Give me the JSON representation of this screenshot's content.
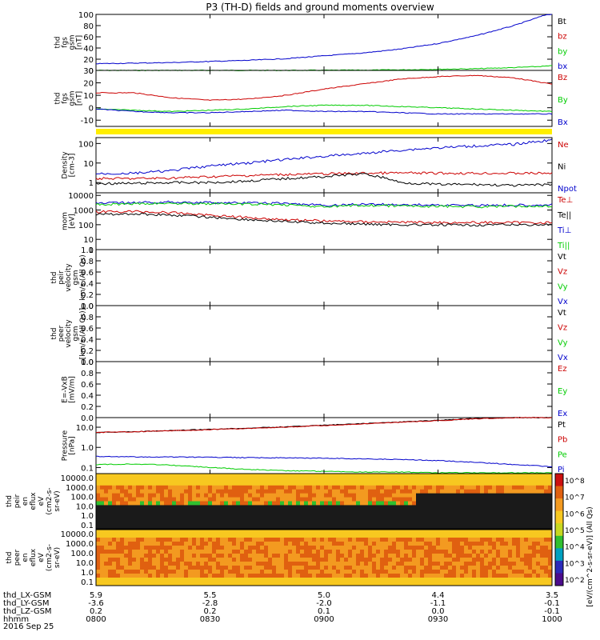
{
  "chart_data": {
    "type": "line",
    "title": "P3 (TH-D) fields and ground moments overview",
    "date_label": "2016 Sep 25",
    "x_axis": {
      "label_rows": [
        "thd_LX-GSM",
        "thd_LY-GSM",
        "thd_LZ-GSM",
        "hhmm"
      ],
      "hhmm": [
        "0800",
        "0830",
        "0900",
        "0930",
        "1000"
      ],
      "lx": [
        "5.9",
        "5.5",
        "5.0",
        "4.4",
        "3.5"
      ],
      "ly": [
        "-3.6",
        "-2.8",
        "-2.0",
        "-1.1",
        "-0.1"
      ],
      "lz": [
        "0.2",
        "0.2",
        "0.1",
        "0.0",
        "-0.1"
      ],
      "xlim": [
        0,
        120
      ]
    },
    "x": [
      0,
      10,
      20,
      30,
      40,
      50,
      60,
      70,
      80,
      90,
      100,
      110,
      120
    ],
    "colorbar": {
      "ticks": [
        "10^8",
        "10^7",
        "10^6",
        "10^5",
        "10^4",
        "10^3",
        "10^2"
      ],
      "label": "[eV/(cm^2-s-sr-eV)] (All Qs)"
    },
    "panels": [
      {
        "ylabel": [
          "thd",
          "fgs",
          "gsm",
          "[nT]"
        ],
        "scale": "linear",
        "ylim": [
          0,
          100
        ],
        "ticks": [
          "100",
          "80",
          "60",
          "40",
          "20",
          "0"
        ],
        "series": [
          {
            "name": "Bt",
            "color": "#000000",
            "y": []
          },
          {
            "name": "bz",
            "color": "#cc0000",
            "y": []
          },
          {
            "name": "by",
            "color": "#00cc00",
            "y": [
              0,
              0,
              0,
              0,
              0,
              0,
              0.2,
              0.5,
              1,
              2,
              3,
              5,
              8
            ]
          },
          {
            "name": "bx",
            "color": "#0000cc",
            "y": [
              12,
              13,
              14,
              16,
              18,
              21,
              26,
              31,
              38,
              48,
              62,
              80,
              103
            ]
          }
        ]
      },
      {
        "ylabel": [
          "thd",
          "fgs",
          "gsm",
          "[nT]"
        ],
        "scale": "linear",
        "ylim": [
          -15,
          30
        ],
        "ticks": [
          "30",
          "20",
          "10",
          "0",
          "-10"
        ],
        "series": [
          {
            "name": "Bz",
            "color": "#cc0000",
            "y": [
              12,
              12,
              8,
              6,
              7,
              10,
              15,
              19,
              23,
              25,
              26,
              24,
              19
            ]
          },
          {
            "name": "By",
            "color": "#00cc00",
            "y": [
              -1,
              -2,
              -3,
              -2,
              -1,
              1,
              2,
              2,
              1,
              0,
              -1,
              -2,
              -3
            ]
          },
          {
            "name": "Bx",
            "color": "#0000cc",
            "y": [
              -1,
              -3,
              -4,
              -4,
              -3,
              -2,
              -3,
              -3,
              -4,
              -5,
              -5,
              -5,
              -5
            ]
          }
        ]
      },
      {
        "ylabel": [
          "Density",
          "[cm-3]"
        ],
        "scale": "log",
        "ylim": [
          0.3,
          200
        ],
        "ticks": [
          "100",
          "10",
          "1"
        ],
        "series": [
          {
            "name": "Ne",
            "color": "#cc0000",
            "y": [
              1.6,
              1.6,
              1.7,
              2,
              2.3,
              2.6,
              2.8,
              3,
              3.1,
              3,
              3,
              3,
              3
            ]
          },
          {
            "name": "Ni",
            "color": "#000000",
            "y": [
              0.9,
              0.9,
              1,
              1,
              1.2,
              1.6,
              2,
              2.8,
              1,
              0.8,
              0.8,
              0.7,
              0.8
            ]
          },
          {
            "name": "Npot",
            "color": "#0000cc",
            "y": [
              2.8,
              3,
              4,
              7,
              10,
              15,
              22,
              30,
              45,
              60,
              75,
              90,
              150
            ]
          }
        ]
      },
      {
        "ylabel": [
          "mom",
          "[eV]"
        ],
        "scale": "log",
        "ylim": [
          2,
          15000
        ],
        "ticks": [
          "10000",
          "1000",
          "100",
          "10",
          "1"
        ],
        "series": [
          {
            "name": "Te⊥",
            "color": "#cc0000",
            "y": [
              750,
              800,
              650,
              450,
              300,
              220,
              180,
              160,
              150,
              140,
              140,
              140,
              140
            ]
          },
          {
            "name": "Te||",
            "color": "#000000",
            "y": [
              500,
              550,
              450,
              320,
              220,
              160,
              130,
              110,
              100,
              95,
              95,
              100,
              100
            ]
          },
          {
            "name": "Ti⊥",
            "color": "#0000cc",
            "y": [
              2800,
              3200,
              3500,
              3200,
              3000,
              2800,
              2000,
              2500,
              2300,
              2200,
              2100,
              2200,
              2300
            ]
          },
          {
            "name": "Ti||",
            "color": "#00cc00",
            "y": [
              2300,
              2600,
              2900,
              2700,
              2500,
              2300,
              1600,
              2100,
              1900,
              1800,
              1700,
              1800,
              1900
            ]
          }
        ]
      },
      {
        "ylabel": [
          "thd",
          "peir",
          "velocity",
          "gsm",
          "km/s (All Qs)"
        ],
        "scale": "linear",
        "ylim": [
          0,
          1
        ],
        "ticks": [
          "1.0",
          "0.8",
          "0.6",
          "0.4",
          "0.2",
          "0.0"
        ],
        "series": [
          {
            "name": "Vt",
            "color": "#000000",
            "y": []
          },
          {
            "name": "Vz",
            "color": "#cc0000",
            "y": []
          },
          {
            "name": "Vy",
            "color": "#00cc00",
            "y": []
          },
          {
            "name": "Vx",
            "color": "#0000cc",
            "y": []
          }
        ]
      },
      {
        "ylabel": [
          "thd",
          "peer",
          "velocity",
          "gsm",
          "[km/s (All Qs)]"
        ],
        "scale": "linear",
        "ylim": [
          0,
          1
        ],
        "ticks": [
          "1.0",
          "0.8",
          "0.6",
          "0.4",
          "0.2",
          "0.0"
        ],
        "series": [
          {
            "name": "Vt",
            "color": "#000000",
            "y": []
          },
          {
            "name": "Vz",
            "color": "#cc0000",
            "y": []
          },
          {
            "name": "Vy",
            "color": "#00cc00",
            "y": []
          },
          {
            "name": "Vx",
            "color": "#0000cc",
            "y": []
          }
        ]
      },
      {
        "ylabel": [
          "E=-VxB",
          "[mV/m]"
        ],
        "scale": "linear",
        "ylim": [
          0,
          1
        ],
        "ticks": [
          "1.0",
          "0.8",
          "0.6",
          "0.4",
          "0.2",
          "0.0"
        ],
        "series": [
          {
            "name": "Ez",
            "color": "#cc0000",
            "y": []
          },
          {
            "name": "Ey",
            "color": "#00cc00",
            "y": []
          },
          {
            "name": "Ex",
            "color": "#0000cc",
            "y": []
          }
        ]
      },
      {
        "ylabel": [
          "Pressure",
          "[nPa]"
        ],
        "scale": "log",
        "ylim": [
          0.05,
          30
        ],
        "ticks": [
          "10.0",
          "1.0",
          "0.1"
        ],
        "series": [
          {
            "name": "Pt",
            "color": "#000000",
            "y": [
              5.5,
              6,
              6.8,
              7.8,
              9,
              10.5,
              12.5,
              15,
              18,
              22,
              27,
              30,
              30
            ]
          },
          {
            "name": "Pb",
            "color": "#cc0000",
            "y": [
              5.5,
              6,
              6.7,
              7.6,
              8.7,
              10.2,
              12,
              14.5,
              17.5,
              21,
              26,
              30,
              30
            ]
          },
          {
            "name": "Pe",
            "color": "#00cc00",
            "y": [
              0.14,
              0.15,
              0.13,
              0.1,
              0.08,
              0.07,
              0.065,
              0.06,
              0.06,
              0.055,
              0.055,
              0.055,
              0.055
            ]
          },
          {
            "name": "Pi",
            "color": "#0000cc",
            "y": [
              0.35,
              0.34,
              0.33,
              0.32,
              0.31,
              0.3,
              0.29,
              0.27,
              0.25,
              0.22,
              0.18,
              0.14,
              0.11
            ]
          }
        ]
      }
    ],
    "spectrograms": [
      {
        "ylabel": [
          "thd",
          "peir",
          "en",
          "eflux",
          "eV",
          "(cm2-s-",
          "sr-eV)"
        ],
        "ticks": [
          "10000.0",
          "1000.0",
          "100.0",
          "10.0",
          "1.0",
          "0.1"
        ]
      },
      {
        "ylabel": [
          "thd",
          "peer",
          "en",
          "eflux",
          "eV",
          "(cm2-s-",
          "sr-eV)"
        ],
        "ticks": [
          "10000.0",
          "1000.0",
          "100.0",
          "10.0",
          "1.0",
          "0.1"
        ]
      }
    ]
  }
}
